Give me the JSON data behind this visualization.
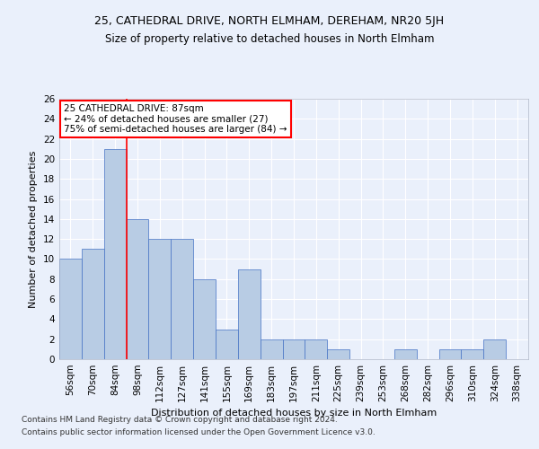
{
  "title1": "25, CATHEDRAL DRIVE, NORTH ELMHAM, DEREHAM, NR20 5JH",
  "title2": "Size of property relative to detached houses in North Elmham",
  "xlabel": "Distribution of detached houses by size in North Elmham",
  "ylabel": "Number of detached properties",
  "categories": [
    "56sqm",
    "70sqm",
    "84sqm",
    "98sqm",
    "112sqm",
    "127sqm",
    "141sqm",
    "155sqm",
    "169sqm",
    "183sqm",
    "197sqm",
    "211sqm",
    "225sqm",
    "239sqm",
    "253sqm",
    "268sqm",
    "282sqm",
    "296sqm",
    "310sqm",
    "324sqm",
    "338sqm"
  ],
  "values": [
    10,
    11,
    21,
    14,
    12,
    12,
    8,
    3,
    9,
    2,
    2,
    2,
    1,
    0,
    0,
    1,
    0,
    1,
    1,
    2,
    0
  ],
  "bar_color": "#b8cce4",
  "bar_edge_color": "#4472c4",
  "annotation_text": "25 CATHEDRAL DRIVE: 87sqm\n← 24% of detached houses are smaller (27)\n75% of semi-detached houses are larger (84) →",
  "annotation_box_color": "white",
  "annotation_box_edge_color": "red",
  "vline_color": "red",
  "vline_x": 2.5,
  "ylim": [
    0,
    26
  ],
  "yticks": [
    0,
    2,
    4,
    6,
    8,
    10,
    12,
    14,
    16,
    18,
    20,
    22,
    24,
    26
  ],
  "footer1": "Contains HM Land Registry data © Crown copyright and database right 2024.",
  "footer2": "Contains public sector information licensed under the Open Government Licence v3.0.",
  "background_color": "#eaf0fb",
  "plot_bg_color": "#eaf0fb",
  "grid_color": "white",
  "title1_fontsize": 9,
  "title2_fontsize": 8.5,
  "axis_label_fontsize": 8,
  "tick_fontsize": 7.5,
  "footer_fontsize": 6.5,
  "annotation_fontsize": 7.5
}
